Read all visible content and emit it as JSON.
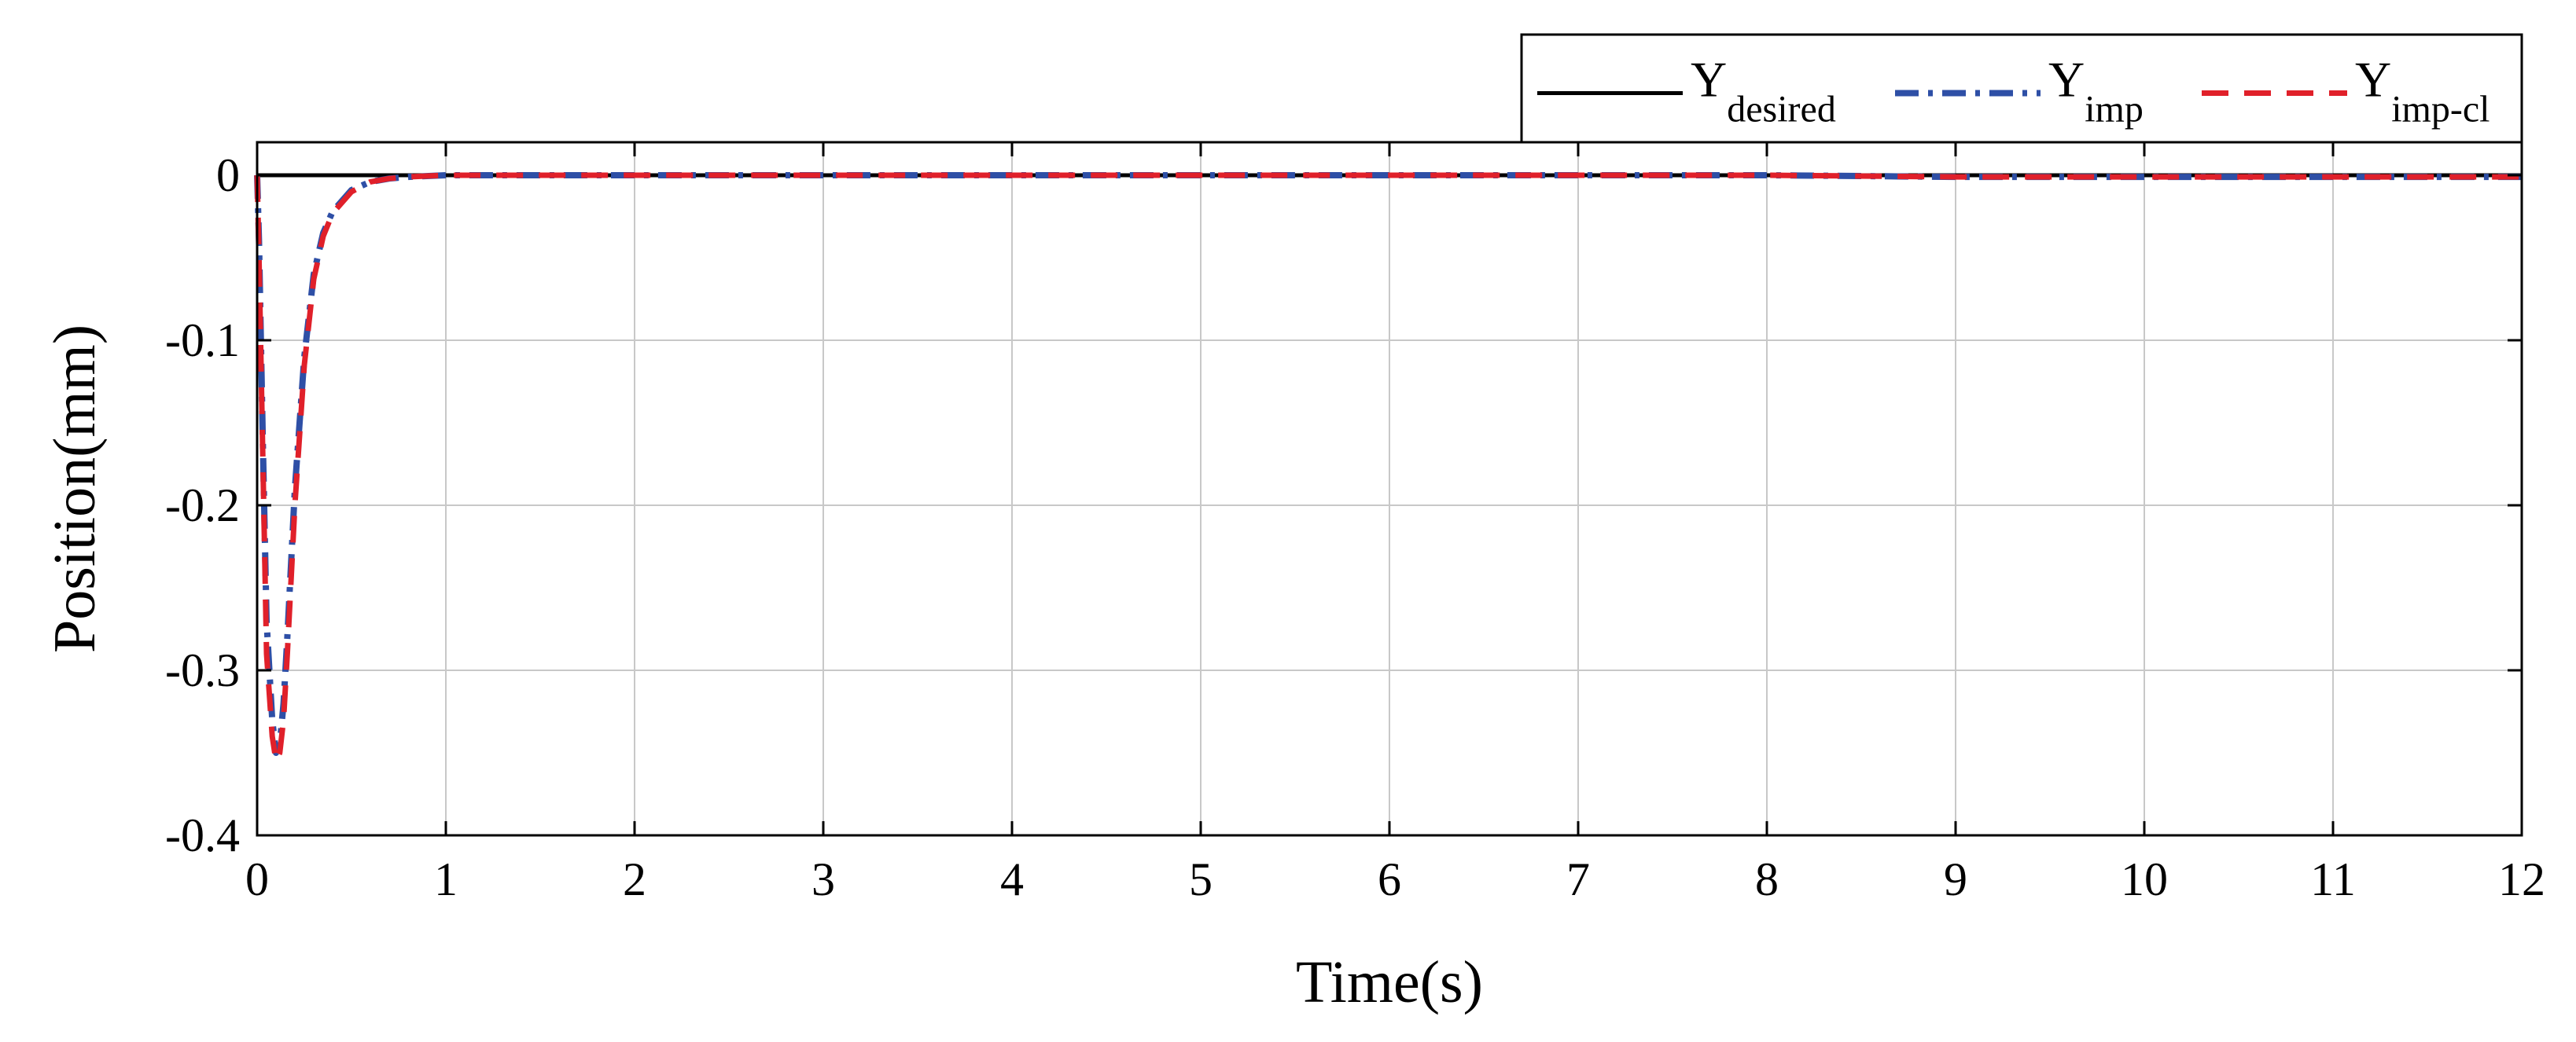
{
  "chart_data": {
    "type": "line",
    "title": "",
    "xlabel": "Time(s)",
    "ylabel": "Position(mm)",
    "xlim": [
      0,
      12
    ],
    "ylim": [
      -0.4,
      0.02
    ],
    "x_ticks": [
      0,
      1,
      2,
      3,
      4,
      5,
      6,
      7,
      8,
      9,
      10,
      11,
      12
    ],
    "x_tick_labels": [
      "0",
      "1",
      "2",
      "3",
      "4",
      "5",
      "6",
      "7",
      "8",
      "9",
      "10",
      "11",
      "12"
    ],
    "y_ticks": [
      0,
      -0.1,
      -0.2,
      -0.3,
      -0.4
    ],
    "y_tick_labels": [
      "0",
      "-0.1",
      "-0.2",
      "-0.3",
      "-0.4"
    ],
    "grid": true,
    "legend_position": "top-right, above plot",
    "series": [
      {
        "name": "Y",
        "name_sub": "desired",
        "color": "#000000",
        "style": "solid",
        "x": [
          0,
          12
        ],
        "y": [
          0,
          0
        ]
      },
      {
        "name": "Y",
        "name_sub": "imp",
        "color": "#2e4fa6",
        "style": "dashdot",
        "x": [
          0,
          0.01,
          0.03,
          0.05,
          0.08,
          0.1,
          0.12,
          0.14,
          0.16,
          0.2,
          0.25,
          0.3,
          0.35,
          0.4,
          0.5,
          0.6,
          0.7,
          0.8,
          1.0,
          2,
          4,
          6,
          7,
          8,
          9,
          10,
          11,
          12
        ],
        "y": [
          0,
          -0.04,
          -0.16,
          -0.27,
          -0.33,
          -0.35,
          -0.345,
          -0.32,
          -0.28,
          -0.19,
          -0.11,
          -0.06,
          -0.035,
          -0.022,
          -0.009,
          -0.004,
          -0.002,
          -0.001,
          0,
          0,
          0,
          0,
          0,
          0,
          -0.001,
          -0.001,
          -0.001,
          -0.001
        ]
      },
      {
        "name": "Y",
        "name_sub": "imp-cl",
        "color": "#e0202a",
        "style": "dashed",
        "x": [
          0,
          0.01,
          0.03,
          0.05,
          0.08,
          0.1,
          0.12,
          0.14,
          0.16,
          0.2,
          0.25,
          0.3,
          0.35,
          0.4,
          0.5,
          0.6,
          0.7,
          0.8,
          1.0,
          2,
          4,
          6,
          7,
          8,
          9,
          10,
          11,
          12
        ],
        "y": [
          0,
          -0.05,
          -0.17,
          -0.29,
          -0.34,
          -0.355,
          -0.35,
          -0.33,
          -0.29,
          -0.2,
          -0.115,
          -0.063,
          -0.037,
          -0.023,
          -0.01,
          -0.004,
          -0.002,
          -0.001,
          0,
          0,
          0,
          0,
          0,
          0,
          -0.001,
          -0.001,
          -0.001,
          -0.001
        ]
      }
    ]
  }
}
